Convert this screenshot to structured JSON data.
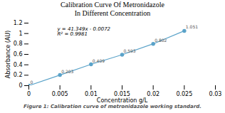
{
  "chart_data": {
    "type": "line",
    "title": "Calibration Curve Of Metronidazole\nIn Different Concentration",
    "xlabel": "Concentration g/L",
    "ylabel": "Absorbance (AU)",
    "x": [
      0,
      0.005,
      0.01,
      0.015,
      0.02,
      0.025
    ],
    "values": [
      0,
      0.203,
      0.409,
      0.593,
      0.802,
      1.051
    ],
    "color": "#5ba3c9",
    "marker": "circle",
    "data_labels": true,
    "annotations": [
      "y = 41.349x - 0.0072",
      "R² = 0.9981"
    ],
    "caption": "Figure 1: Calibration curve of metronidazole working standard.",
    "xlim": [
      0,
      0.03
    ],
    "ylim": [
      0,
      1.2
    ],
    "xticks": [
      0,
      0.005,
      0.01,
      0.015,
      0.02,
      0.025,
      0.03
    ],
    "yticks": [
      0,
      0.2,
      0.4,
      0.6,
      0.8,
      1.0,
      1.2
    ],
    "grid": false
  }
}
